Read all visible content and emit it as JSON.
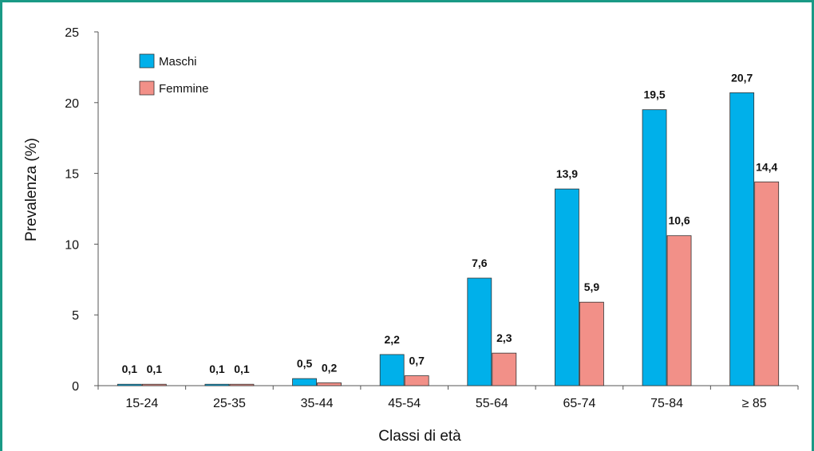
{
  "chart_data": {
    "type": "bar",
    "title": "",
    "xlabel": "Classi di età",
    "ylabel": "Prevalenza (%)",
    "ylim": [
      0,
      25
    ],
    "yticks": [
      0,
      5,
      10,
      15,
      20,
      25
    ],
    "categories": [
      "15-24",
      "25-35",
      "35-44",
      "45-54",
      "55-64",
      "65-74",
      "75-84",
      "≥ 85"
    ],
    "series": [
      {
        "name": "Maschi",
        "color": "#00b0ea",
        "values": [
          0.1,
          0.1,
          0.5,
          2.2,
          7.6,
          13.9,
          19.5,
          20.7
        ],
        "labels": [
          "0,1",
          "0,1",
          "0,5",
          "2,2",
          "7,6",
          "13,9",
          "19,5",
          "20,7"
        ]
      },
      {
        "name": "Femmine",
        "color": "#f29088",
        "values": [
          0.1,
          0.1,
          0.2,
          0.7,
          2.3,
          5.9,
          10.6,
          14.4
        ],
        "labels": [
          "0,1",
          "0,1",
          "0,2",
          "0,7",
          "2,3",
          "5,9",
          "10,6",
          "14,4"
        ]
      }
    ],
    "legend": "top-left",
    "grid": false
  }
}
